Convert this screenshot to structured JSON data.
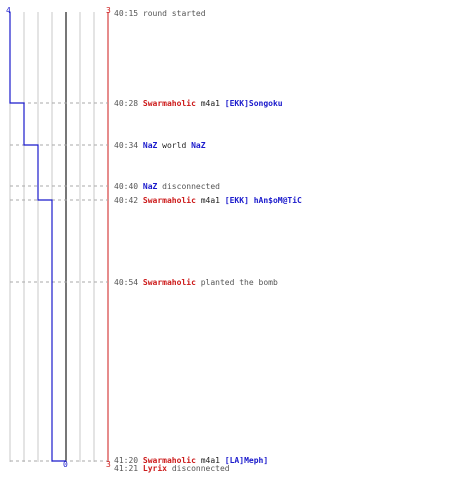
{
  "colors": {
    "team_a": "#1a1acc",
    "team_b": "#cc1a1a",
    "time": "#555555",
    "event": "#555555",
    "weapon": "#222222",
    "grid": "#c8c8c8",
    "guide": "#aaaaaa",
    "center": "#777777"
  },
  "top_counts": {
    "team_a": "4",
    "team_b": "3"
  },
  "bottom_counts": {
    "team_a": "0",
    "team_b": "3"
  },
  "events": [
    {
      "time": "40:15",
      "parts": [
        {
          "text": "round started",
          "role": "event"
        }
      ]
    },
    {
      "time": "40:28",
      "parts": [
        {
          "text": "Swarmaholic",
          "role": "team_b"
        },
        {
          "text": " m4a1 ",
          "role": "weapon"
        },
        {
          "text": "[EKK]Songoku",
          "role": "team_a"
        }
      ]
    },
    {
      "time": "40:34",
      "parts": [
        {
          "text": "NaZ",
          "role": "team_a"
        },
        {
          "text": " world ",
          "role": "weapon"
        },
        {
          "text": "NaZ",
          "role": "team_a"
        }
      ]
    },
    {
      "time": "40:40",
      "parts": [
        {
          "text": "NaZ",
          "role": "team_a"
        },
        {
          "text": " disconnected",
          "role": "event"
        }
      ]
    },
    {
      "time": "40:42",
      "parts": [
        {
          "text": "Swarmaholic",
          "role": "team_b"
        },
        {
          "text": " m4a1 ",
          "role": "weapon"
        },
        {
          "text": "[EKK] hAn$oM@TiC",
          "role": "team_a"
        }
      ]
    },
    {
      "time": "40:54",
      "parts": [
        {
          "text": "Swarmaholic",
          "role": "team_b"
        },
        {
          "text": " planted the bomb",
          "role": "event"
        }
      ]
    },
    {
      "time": "41:20",
      "parts": [
        {
          "text": "Swarmaholic",
          "role": "team_b"
        },
        {
          "text": " m4a1 ",
          "role": "weapon"
        },
        {
          "text": "[LA]Meph]",
          "role": "team_a"
        }
      ]
    },
    {
      "time": "41:21",
      "parts": [
        {
          "text": "Lyrix",
          "role": "team_b"
        },
        {
          "text": " disconnected",
          "role": "event"
        }
      ]
    }
  ]
}
